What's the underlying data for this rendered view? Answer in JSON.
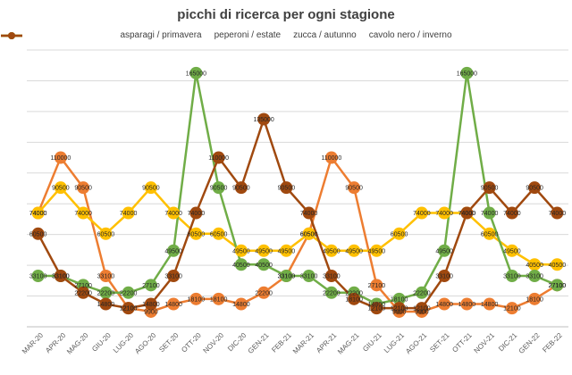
{
  "chart_data": {
    "type": "line",
    "title": "picchi di ricerca per ogni stagione",
    "xlabel": "",
    "ylabel": "",
    "categories": [
      "MAR-20",
      "APR-20",
      "MAG-20",
      "GIU-20",
      "LUG-20",
      "AGO-20",
      "SET-20",
      "OTT-20",
      "NOV-20",
      "DIC-20",
      "GEN-21",
      "FEB-21",
      "MAR-21",
      "APR-21",
      "MAG-21",
      "GIU-21",
      "LUG-21",
      "AGO-21",
      "SET-21",
      "OTT-21",
      "NOV-21",
      "DIC-21",
      "GEN-22",
      "FEB-22"
    ],
    "ylim": [
      0,
      180000
    ],
    "grid": true,
    "legend": "top",
    "series": [
      {
        "name": "asparagi / primavera",
        "color": "#ED7D31",
        "values": [
          74000,
          110000,
          90500,
          33100,
          12100,
          9900,
          14800,
          18100,
          18100,
          14800,
          22200,
          33100,
          60500,
          110000,
          90500,
          27100,
          9900,
          9900,
          14800,
          14800,
          14800,
          12100,
          18100,
          27100
        ]
      },
      {
        "name": "peperoni / estate",
        "color": "#FFC000",
        "values": [
          74000,
          90500,
          74000,
          60500,
          74000,
          90500,
          74000,
          60500,
          60500,
          49500,
          49500,
          49500,
          60500,
          49500,
          49500,
          49500,
          60500,
          74000,
          74000,
          74000,
          60500,
          49500,
          40500,
          40500
        ]
      },
      {
        "name": "zucca / autunno",
        "color": "#70AD47",
        "values": [
          33100,
          33100,
          27100,
          22200,
          22200,
          27100,
          49500,
          165000,
          90500,
          40500,
          40500,
          33100,
          33100,
          22200,
          22200,
          14800,
          18100,
          22200,
          49500,
          165000,
          74000,
          33100,
          33100,
          27100
        ]
      },
      {
        "name": "cavolo nero / inverno",
        "color": "#A0490F",
        "values": [
          60500,
          33100,
          22200,
          14800,
          12100,
          14800,
          33100,
          74000,
          110000,
          90500,
          135000,
          90500,
          74000,
          33100,
          18100,
          12100,
          12100,
          12100,
          33100,
          74000,
          90500,
          74000,
          90500,
          74000
        ]
      }
    ]
  }
}
